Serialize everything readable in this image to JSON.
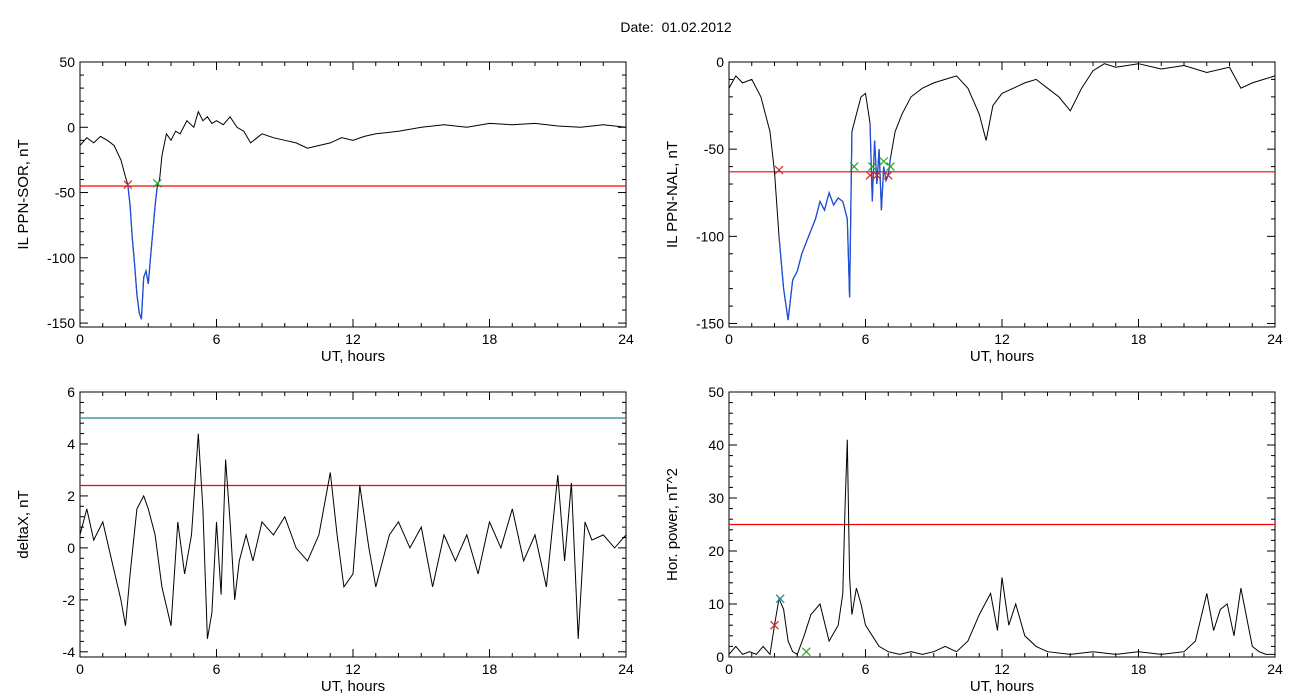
{
  "title": "Date:  01.02.2012",
  "colors": {
    "data": "#000000",
    "threshold": "#ff0000",
    "event": "#1f4fd8",
    "level": "#1f8a8a",
    "start_marker": "#d62728",
    "end_marker": "#2ca02c"
  },
  "chart_data": [
    {
      "type": "line",
      "xlabel": "UT, hours",
      "ylabel": "IL PPN-SOR, nT",
      "xlim": [
        0,
        24
      ],
      "ylim": [
        -153,
        50
      ],
      "xticks": [
        0,
        6,
        12,
        18,
        24
      ],
      "yticks": [
        -150,
        -100,
        -50,
        0,
        50
      ],
      "series": [
        {
          "x": [
            0,
            0.3,
            0.6,
            0.9,
            1.2,
            1.5,
            1.8,
            2.0,
            2.1,
            2.2,
            2.3,
            2.4,
            2.5,
            2.6,
            2.7,
            2.8,
            2.9,
            3.0,
            3.1,
            3.2,
            3.3,
            3.4,
            3.5,
            3.6,
            3.8,
            4.0,
            4.2,
            4.4,
            4.7,
            5.0,
            5.2,
            5.4,
            5.6,
            5.8,
            6.0,
            6.3,
            6.6,
            6.9,
            7.2,
            7.5,
            8,
            8.5,
            9,
            9.5,
            10,
            10.5,
            11,
            11.5,
            12,
            12.5,
            13,
            14,
            15,
            16,
            17,
            18,
            19,
            20,
            21,
            22,
            23,
            24
          ],
          "y": [
            -14,
            -8,
            -12,
            -7,
            -10,
            -14,
            -25,
            -38,
            -44,
            -60,
            -85,
            -105,
            -128,
            -142,
            -147,
            -115,
            -110,
            -120,
            -100,
            -80,
            -60,
            -45,
            -40,
            -22,
            -5,
            -10,
            -3,
            -5,
            5,
            0,
            12,
            5,
            8,
            3,
            5,
            2,
            8,
            0,
            -3,
            -12,
            -5,
            -8,
            -10,
            -12,
            -16,
            -14,
            -12,
            -8,
            -10,
            -7,
            -5,
            -3,
            0,
            2,
            0,
            3,
            2,
            3,
            1,
            0,
            2,
            0
          ]
        }
      ],
      "threshold": -45,
      "event_segments": [
        [
          2.1,
          3.4
        ]
      ],
      "markers": [
        {
          "kind": "start",
          "x": 2.1,
          "y": -44
        },
        {
          "kind": "end",
          "x": 3.4,
          "y": -43
        }
      ]
    },
    {
      "type": "line",
      "xlabel": "UT, hours",
      "ylabel": "IL PPN-NAL, nT",
      "xlim": [
        0,
        24
      ],
      "ylim": [
        -152,
        0
      ],
      "xticks": [
        0,
        6,
        12,
        18,
        24
      ],
      "yticks": [
        -150,
        -100,
        -50,
        0
      ],
      "series": [
        {
          "x": [
            0,
            0.3,
            0.6,
            1.0,
            1.4,
            1.8,
            2.0,
            2.2,
            2.4,
            2.6,
            2.8,
            3.0,
            3.2,
            3.5,
            3.8,
            4.0,
            4.2,
            4.4,
            4.6,
            4.8,
            5.0,
            5.2,
            5.3,
            5.4,
            5.6,
            5.8,
            6.0,
            6.2,
            6.3,
            6.4,
            6.5,
            6.6,
            6.7,
            6.8,
            6.9,
            7.0,
            7.1,
            7.3,
            7.6,
            8.0,
            8.5,
            9.0,
            9.5,
            10.0,
            10.5,
            11.0,
            11.3,
            11.6,
            12.0,
            12.5,
            13.0,
            13.5,
            14.0,
            14.5,
            15.0,
            15.5,
            16.0,
            16.5,
            17,
            17.5,
            18,
            19,
            20,
            21,
            22,
            22.5,
            23,
            23.5,
            24
          ],
          "y": [
            -15,
            -8,
            -12,
            -10,
            -20,
            -40,
            -63,
            -100,
            -130,
            -148,
            -125,
            -120,
            -110,
            -100,
            -90,
            -80,
            -85,
            -75,
            -82,
            -78,
            -80,
            -90,
            -135,
            -40,
            -30,
            -20,
            -18,
            -35,
            -80,
            -45,
            -70,
            -50,
            -85,
            -60,
            -68,
            -65,
            -55,
            -40,
            -30,
            -20,
            -15,
            -12,
            -10,
            -8,
            -15,
            -30,
            -45,
            -25,
            -18,
            -15,
            -12,
            -10,
            -15,
            -20,
            -28,
            -15,
            -5,
            -1,
            -3,
            -2,
            -1,
            -4,
            -2,
            -6,
            -3,
            -15,
            -12,
            -10,
            -8
          ]
        }
      ],
      "threshold": -63,
      "event_segments": [
        [
          2.1,
          5.5
        ],
        [
          6.2,
          7.1
        ]
      ],
      "markers": [
        {
          "kind": "start",
          "x": 2.2,
          "y": -62
        },
        {
          "kind": "end",
          "x": 5.5,
          "y": -60
        },
        {
          "kind": "start",
          "x": 6.2,
          "y": -65
        },
        {
          "kind": "end",
          "x": 6.3,
          "y": -60
        },
        {
          "kind": "start",
          "x": 6.5,
          "y": -65
        },
        {
          "kind": "end",
          "x": 6.8,
          "y": -57
        },
        {
          "kind": "start",
          "x": 7.0,
          "y": -65
        },
        {
          "kind": "end",
          "x": 7.1,
          "y": -60
        }
      ]
    },
    {
      "type": "line",
      "xlabel": "UT, hours",
      "ylabel": "deltaX, nT",
      "xlim": [
        0,
        24
      ],
      "ylim": [
        -4.2,
        6
      ],
      "xticks": [
        0,
        6,
        12,
        18,
        24
      ],
      "yticks": [
        -4,
        -2,
        0,
        2,
        4,
        6
      ],
      "series": [
        {
          "x": [
            0,
            0.3,
            0.6,
            1.0,
            1.4,
            1.8,
            2.0,
            2.2,
            2.5,
            2.8,
            3.0,
            3.3,
            3.6,
            4.0,
            4.3,
            4.6,
            4.9,
            5.2,
            5.4,
            5.6,
            5.8,
            6.0,
            6.2,
            6.4,
            6.6,
            6.8,
            7.0,
            7.3,
            7.6,
            8.0,
            8.5,
            9.0,
            9.5,
            10,
            10.5,
            11,
            11.3,
            11.6,
            12,
            12.3,
            12.7,
            13,
            13.3,
            13.6,
            14,
            14.5,
            15,
            15.5,
            16,
            16.5,
            17,
            17.5,
            18,
            18.5,
            19,
            19.5,
            20,
            20.5,
            21,
            21.3,
            21.6,
            21.9,
            22.2,
            22.5,
            23,
            23.5,
            24
          ],
          "y": [
            0.5,
            1.5,
            0.3,
            1.0,
            -0.5,
            -2.0,
            -3.0,
            -1.0,
            1.5,
            2.0,
            1.5,
            0.5,
            -1.5,
            -3.0,
            1.0,
            -1.0,
            0.5,
            4.4,
            1.5,
            -3.5,
            -2.5,
            1.0,
            -1.8,
            3.4,
            1.0,
            -2.0,
            -0.5,
            0.5,
            -0.5,
            1.0,
            0.5,
            1.2,
            0.0,
            -0.5,
            0.5,
            2.9,
            0.5,
            -1.5,
            -1.0,
            2.4,
            0.0,
            -1.5,
            -0.5,
            0.5,
            1.0,
            0.0,
            0.8,
            -1.5,
            0.5,
            -0.5,
            0.5,
            -1.0,
            1.0,
            0.0,
            1.5,
            -0.5,
            0.5,
            -1.5,
            2.8,
            -0.5,
            2.5,
            -3.5,
            1.0,
            0.3,
            0.5,
            0.0,
            0.5
          ]
        }
      ],
      "thresholds": [
        {
          "kind": "threshold",
          "value": 2.4
        },
        {
          "kind": "level",
          "value": 5.0
        }
      ]
    },
    {
      "type": "line",
      "xlabel": "UT, hours",
      "ylabel": "Hor. power, nT^2",
      "xlim": [
        0,
        24
      ],
      "ylim": [
        0,
        50
      ],
      "xticks": [
        0,
        6,
        12,
        18,
        24
      ],
      "yticks": [
        0,
        10,
        20,
        30,
        40,
        50
      ],
      "series": [
        {
          "x": [
            0,
            0.3,
            0.6,
            0.9,
            1.2,
            1.5,
            1.8,
            2.0,
            2.2,
            2.4,
            2.6,
            2.8,
            3.0,
            3.3,
            3.6,
            4.0,
            4.4,
            4.8,
            5.0,
            5.1,
            5.2,
            5.3,
            5.4,
            5.6,
            5.8,
            6.0,
            6.3,
            6.6,
            7,
            7.5,
            8,
            8.5,
            9,
            9.5,
            10,
            10.5,
            11,
            11.5,
            11.8,
            12,
            12.3,
            12.6,
            13,
            13.5,
            14,
            15,
            16,
            17,
            18,
            19,
            20,
            20.5,
            21,
            21.3,
            21.6,
            21.9,
            22.2,
            22.5,
            23,
            23.3,
            23.6,
            24
          ],
          "y": [
            0.5,
            2,
            0.5,
            1,
            0.5,
            2,
            0.5,
            6,
            11,
            9,
            3,
            1,
            0.5,
            4,
            8,
            10,
            3,
            6,
            12,
            28,
            41,
            15,
            8,
            13,
            10,
            6,
            4,
            2,
            1,
            0.5,
            1,
            0.5,
            1,
            2,
            1,
            3,
            8,
            12,
            5,
            15,
            6,
            10,
            4,
            2,
            1,
            0.5,
            1,
            0.5,
            1,
            0.5,
            1,
            3,
            12,
            5,
            9,
            10,
            4,
            13,
            2,
            1,
            0.5,
            0.5
          ]
        }
      ],
      "threshold": 25,
      "markers": [
        {
          "kind": "start",
          "x": 2.0,
          "y": 6
        },
        {
          "kind": "level",
          "x": 2.25,
          "y": 11
        },
        {
          "kind": "end",
          "x": 3.4,
          "y": 1
        }
      ]
    }
  ]
}
